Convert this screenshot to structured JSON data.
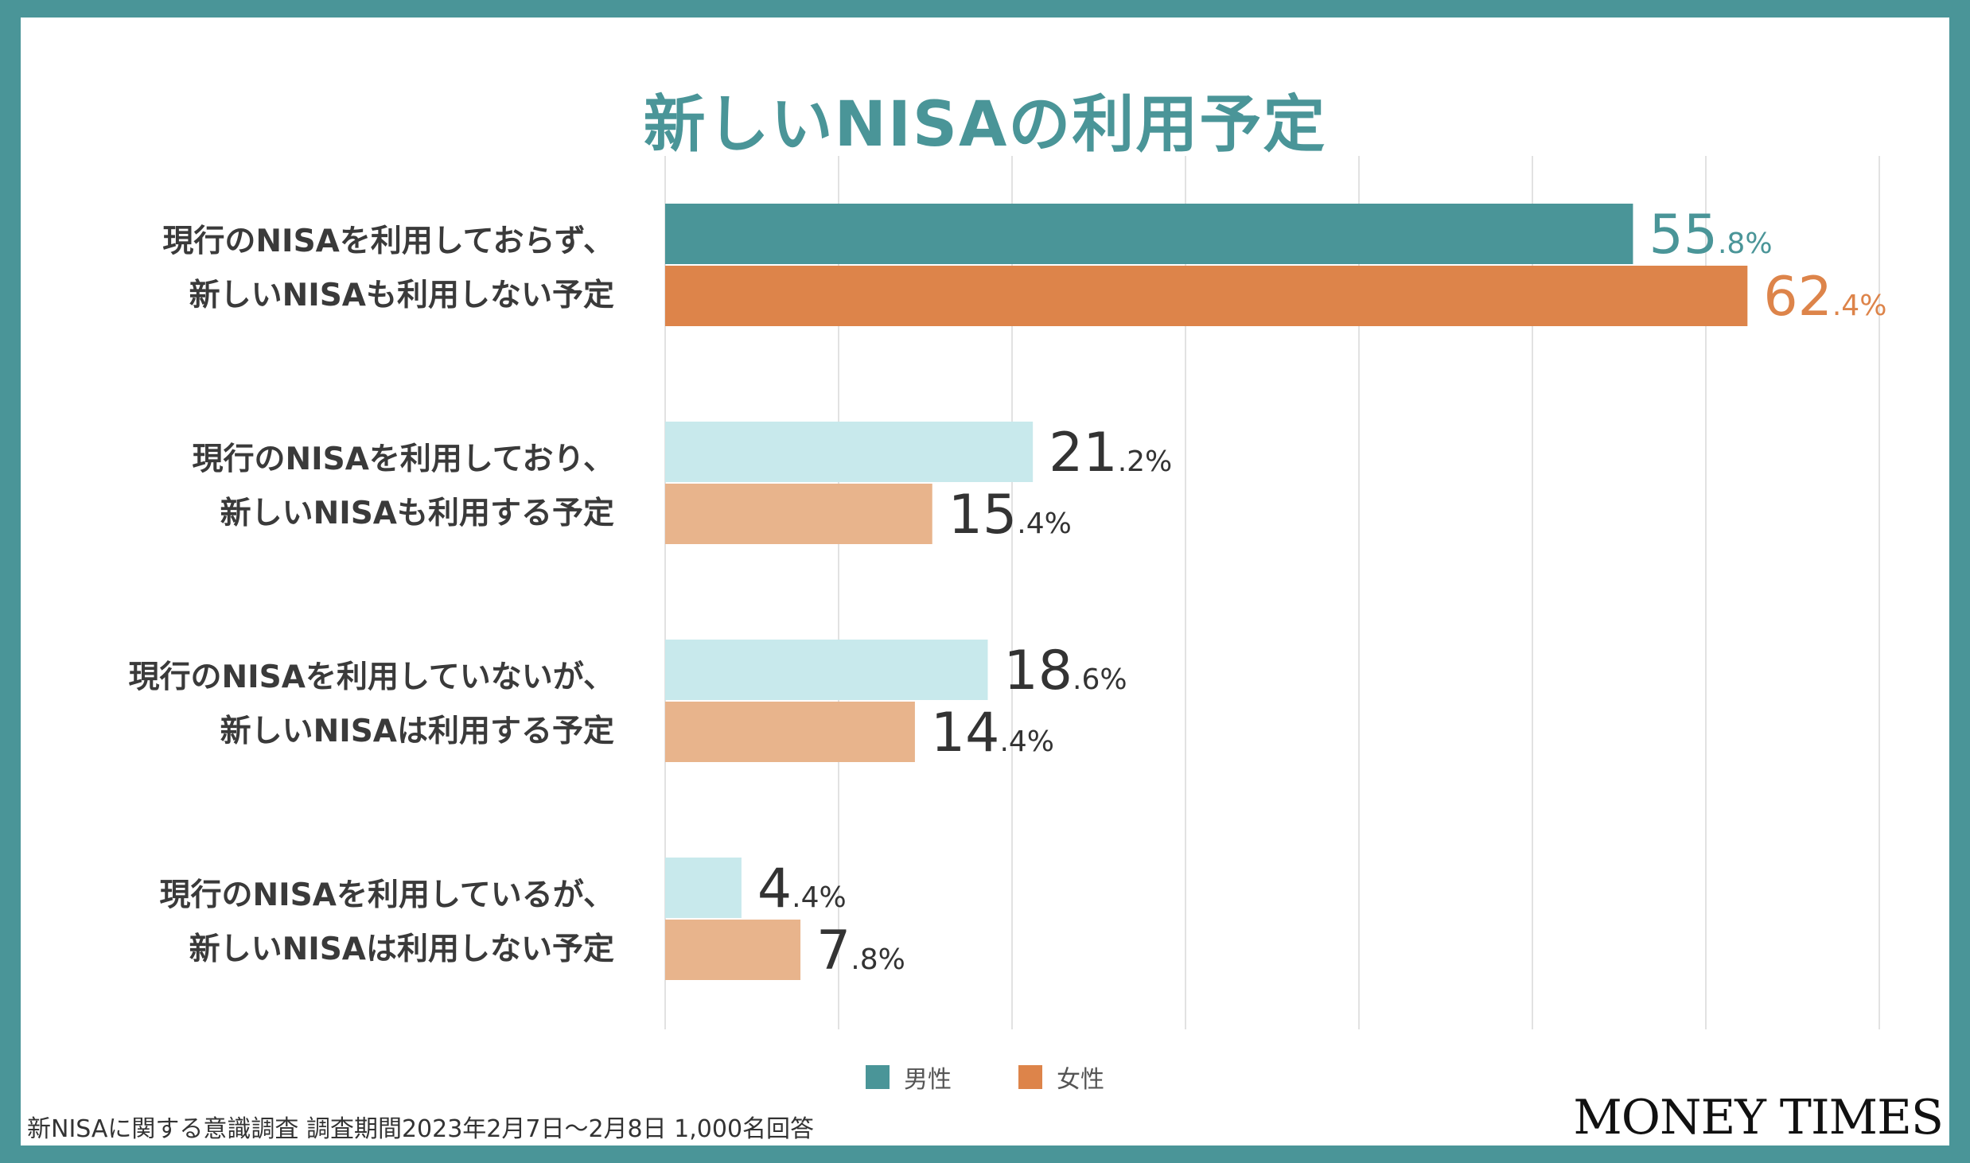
{
  "title": "新しいNISAの利用予定",
  "colors": {
    "male": "#4a9598",
    "female": "#dd844a",
    "male_light": "#c8e9ec",
    "female_light": "#e8b48c",
    "grid": "#e2e2e2",
    "text": "#3a3a3a",
    "border": "#4a9598"
  },
  "legend": [
    {
      "label": "男性",
      "color": "#4a9598"
    },
    {
      "label": "女性",
      "color": "#dd844a"
    }
  ],
  "footnote": "新NISAに関する意識調査 調査期間2023年2月7日〜2月8日 1,000名回答",
  "brand": "MONEY TIMES",
  "chart_data": {
    "type": "bar",
    "orientation": "horizontal",
    "categories": [
      [
        "現行のNISAを利用しておらず、",
        "新しいNISAも利用しない予定"
      ],
      [
        "現行のNISAを利用しており、",
        "新しいNISAも利用する予定"
      ],
      [
        "現行のNISAを利用していないが、",
        "新しいNISAは利用する予定"
      ],
      [
        "現行のNISAを利用しているが、",
        "新しいNISAは利用しない予定"
      ]
    ],
    "series": [
      {
        "name": "男性",
        "values": [
          55.8,
          21.2,
          18.6,
          4.4
        ]
      },
      {
        "name": "女性",
        "values": [
          62.4,
          15.4,
          14.4,
          7.8
        ]
      }
    ],
    "highlight_category": 0,
    "value_suffix": "%",
    "xlim": [
      0,
      70
    ],
    "grid": true,
    "legend_position": "bottom"
  }
}
